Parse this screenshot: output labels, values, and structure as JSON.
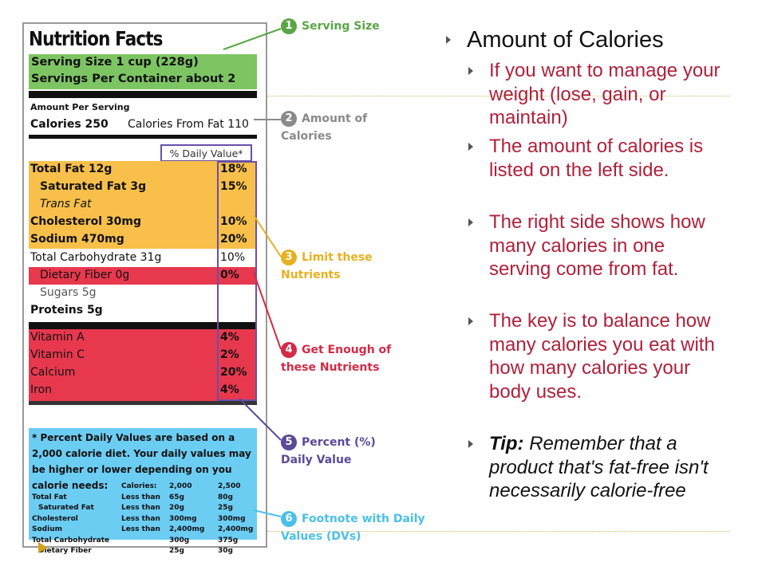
{
  "label": {
    "title": "Nutrition Facts",
    "serving_size": "Serving Size 1 cup (228g)",
    "servings_per_container": "Servings Per Container about 2",
    "amount_per_serving": "Amount Per Serving",
    "calories": "Calories 250",
    "calories_from_fat": "Calories From Fat 110",
    "daily_value_header": "% Daily Value*",
    "limit_rows": [
      {
        "name": "Total Fat 12g",
        "value": "18%"
      },
      {
        "name": "Saturated Fat 3g",
        "value": "15%"
      },
      {
        "name": "Trans Fat",
        "value": ""
      },
      {
        "name": "Cholesterol 30mg",
        "value": "10%"
      },
      {
        "name": "Sodium 470mg",
        "value": "20%"
      }
    ],
    "carb_row": {
      "name": "Total Carbohydrate 31g",
      "value": "10%"
    },
    "fiber_row": {
      "name": "Dietary Fiber 0g",
      "value": "0%"
    },
    "sugars_row": {
      "name": "Sugars 5g",
      "value": ""
    },
    "proteins_row": {
      "name": "Proteins 5g",
      "value": ""
    },
    "vitamin_rows": [
      {
        "name": "Vitamin A",
        "value": "4%"
      },
      {
        "name": "Vitamin C",
        "value": "2%"
      },
      {
        "name": "Calcium",
        "value": "20%"
      },
      {
        "name": "Iron",
        "value": "4%"
      }
    ],
    "footnote": "* Percent Daily Values are based on a 2,000 calorie diet. Your daily values may be higher or lower depending on you calorie needs:",
    "footnote_table": {
      "header": [
        "",
        "Calories:",
        "2,000",
        "2,500"
      ],
      "rows": [
        [
          "Total Fat",
          "Less than",
          "65g",
          "80g"
        ],
        [
          "Saturated Fat",
          "Less than",
          "20g",
          "25g"
        ],
        [
          "Cholesterol",
          "Less than",
          "300mg",
          "300mg"
        ],
        [
          "Sodium",
          "Less than",
          "2,400mg",
          "2,400mg"
        ],
        [
          "Total Carbohydrate",
          "",
          "300g",
          "375g"
        ],
        [
          "Dietary Fiber",
          "",
          "25g",
          "30g"
        ]
      ]
    }
  },
  "callouts": [
    {
      "num": "1",
      "text": "Serving Size",
      "color": "#5aa646"
    },
    {
      "num": "2",
      "text": "Amount of Calories",
      "color": "#8a8a8a"
    },
    {
      "num": "3",
      "text": "Limit these Nutrients",
      "color": "#e8b020"
    },
    {
      "num": "4",
      "text": "Get Enough of these Nutrients",
      "color": "#d42a46"
    },
    {
      "num": "5",
      "text": "Percent (%) Daily Value",
      "color": "#5a4a98"
    },
    {
      "num": "6",
      "text": "Footnote with Daily Values (DVs)",
      "color": "#4ac0ea"
    }
  ],
  "slide": {
    "heading": "Amount of Calories",
    "bullets": [
      "If you want to manage your weight (lose, gain, or maintain)",
      "The amount of calories is listed on the left side.",
      "The right side shows how many calories in one serving come from fat.",
      "The key is to balance how many calories you eat with how many calories your body uses."
    ],
    "tip_label": "Tip:",
    "tip_text": " Remember that a product that's fat-free isn't necessarily calorie-free"
  }
}
